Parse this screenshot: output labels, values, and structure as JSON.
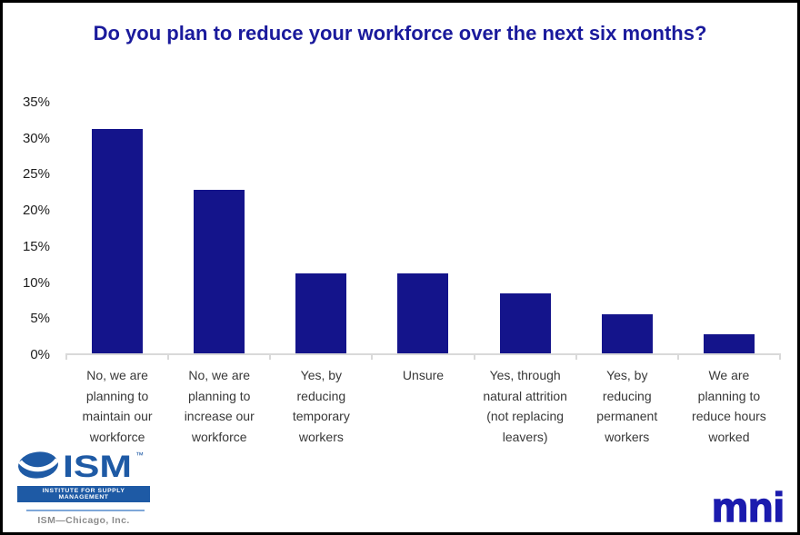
{
  "chart_data": {
    "type": "bar",
    "title": "Do you plan to reduce your workforce over the next six months?",
    "categories": [
      "No, we are planning to maintain our workforce",
      "No, we are planning to increase our workforce",
      "Yes, by reducing temporary workers",
      "Unsure",
      "Yes, through natural attrition (not replacing leavers)",
      "Yes, by reducing permanent workers",
      "We are planning to reduce hours worked"
    ],
    "values": [
      31.3,
      22.8,
      11.2,
      11.2,
      8.4,
      5.5,
      2.7
    ],
    "xlabel": "",
    "ylabel": "",
    "ylim": [
      0,
      35
    ],
    "yticks_top_to_bottom": [
      "35%",
      "30%",
      "25%",
      "20%",
      "15%",
      "10%",
      "5%",
      "0%"
    ],
    "grid": false,
    "legend": false,
    "bar_color": "#14148B",
    "axis_color": "#D9D9D9"
  },
  "footer": {
    "ism": {
      "wordmark": "ISM",
      "tm": "™",
      "tagline": "INSTITUTE FOR SUPPLY MANAGEMENT",
      "subtext": "ISM—Chicago, Inc.",
      "blue": "#1E5AA5",
      "gray": "#8C8C8C"
    },
    "mni": {
      "text": "mni",
      "color": "#1B1BAE"
    }
  },
  "colors": {
    "title": "#1A1A9C",
    "bar": "#14148B",
    "axis": "#D9D9D9",
    "category_label": "#383838",
    "border": "#000000"
  }
}
